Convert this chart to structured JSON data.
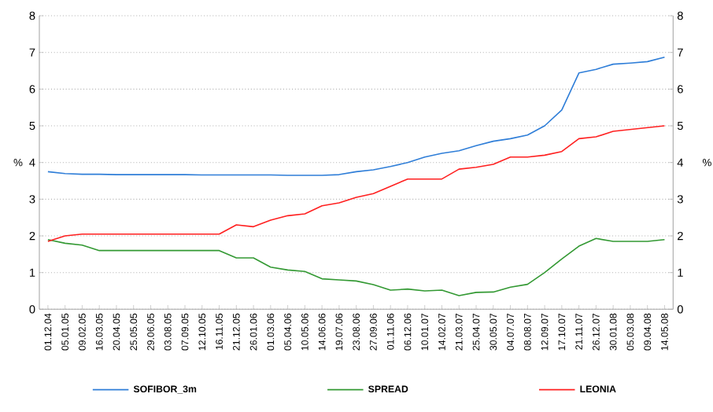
{
  "chart_data": {
    "type": "line",
    "categories": [
      "01.12.04",
      "05.01.05",
      "09.02.05",
      "16.03.05",
      "20.04.05",
      "25.05.05",
      "29.06.05",
      "03.08.05",
      "07.09.05",
      "12.10.05",
      "16.11.05",
      "21.12.05",
      "26.01.06",
      "01.03.06",
      "05.04.06",
      "10.05.06",
      "14.06.06",
      "19.07.06",
      "23.08.06",
      "27.09.06",
      "01.11.06",
      "06.12.06",
      "10.01.07",
      "14.02.07",
      "21.03.07",
      "25.04.07",
      "30.05.07",
      "04.07.07",
      "08.08.07",
      "12.09.07",
      "17.10.07",
      "21.11.07",
      "26.12.07",
      "30.01.08",
      "05.03.08",
      "09.04.08",
      "14.05.08"
    ],
    "series": [
      {
        "name": "SOFIBOR_3m",
        "color": "#2f7ed8",
        "values": [
          3.75,
          3.7,
          3.68,
          3.68,
          3.67,
          3.67,
          3.67,
          3.67,
          3.67,
          3.66,
          3.66,
          3.66,
          3.66,
          3.66,
          3.65,
          3.65,
          3.65,
          3.67,
          3.75,
          3.8,
          3.89,
          4.0,
          4.15,
          4.25,
          4.32,
          4.46,
          4.58,
          4.65,
          4.75,
          5.0,
          5.43,
          6.44,
          6.54,
          6.68,
          6.71,
          6.75,
          6.87
        ]
      },
      {
        "name": "SPREAD",
        "color": "#339933",
        "values": [
          1.9,
          1.8,
          1.75,
          1.6,
          1.6,
          1.6,
          1.6,
          1.6,
          1.6,
          1.6,
          1.6,
          1.4,
          1.4,
          1.15,
          1.07,
          1.03,
          0.83,
          0.8,
          0.77,
          0.67,
          0.52,
          0.55,
          0.5,
          0.52,
          0.37,
          0.46,
          0.47,
          0.6,
          0.68,
          1.0,
          1.37,
          1.72,
          1.93,
          1.85,
          1.85,
          1.85,
          1.9
        ]
      },
      {
        "name": "LEONIA",
        "color": "#ff2020",
        "values": [
          1.85,
          2.0,
          2.05,
          2.05,
          2.05,
          2.05,
          2.05,
          2.05,
          2.05,
          2.05,
          2.05,
          2.3,
          2.25,
          2.43,
          2.55,
          2.6,
          2.82,
          2.9,
          3.05,
          3.15,
          3.35,
          3.55,
          3.55,
          3.55,
          3.82,
          3.87,
          3.95,
          4.15,
          4.15,
          4.2,
          4.3,
          4.65,
          4.7,
          4.85,
          4.9,
          4.95,
          5.0
        ]
      }
    ],
    "ylabel": "%",
    "y2label": "%",
    "ylim": [
      0,
      8
    ],
    "yticks": [
      0,
      1,
      2,
      3,
      4,
      5,
      6,
      7,
      8
    ],
    "y2lim": [
      0,
      8
    ],
    "y2ticks": [
      0,
      1,
      2,
      3,
      4,
      5,
      6,
      7,
      8
    ],
    "grid": "y",
    "legend": "bottom",
    "marker": "none",
    "line_style": "solid"
  }
}
